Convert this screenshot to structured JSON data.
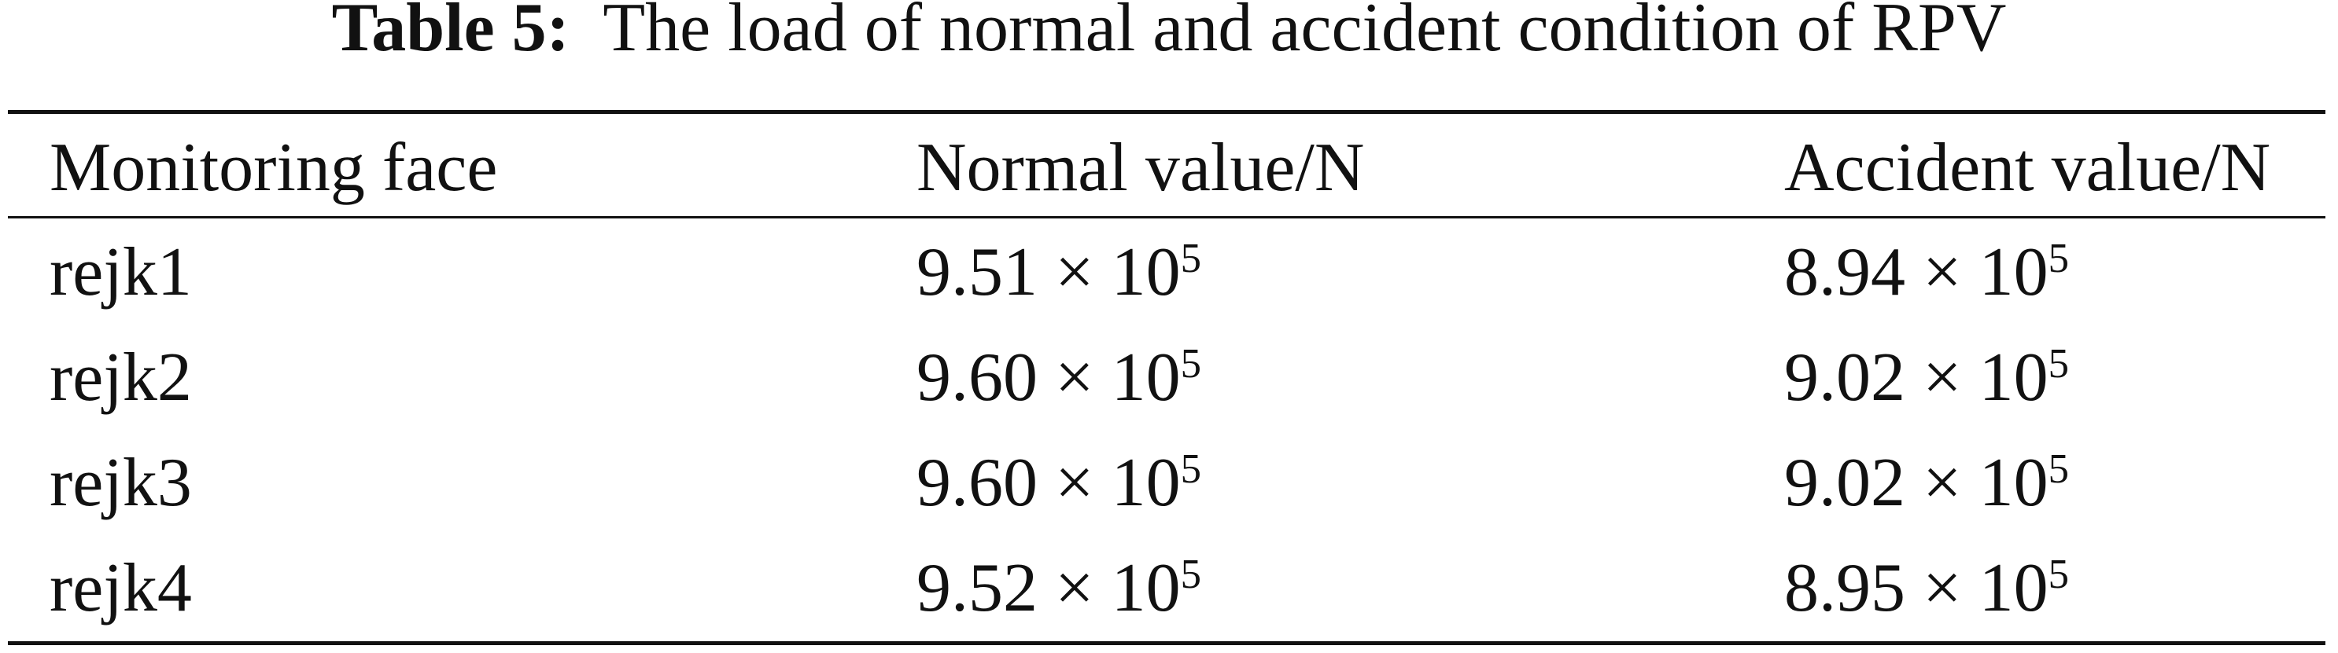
{
  "table": {
    "label": "Table 5:",
    "caption": "The load of normal and accident condition of RPV",
    "header": [
      "Monitoring face",
      "Normal value/N",
      "Accident value/N"
    ],
    "rows": [
      [
        {
          "text": "rejk1"
        },
        {
          "mantissa": "9.51",
          "base": "× 10",
          "exponent": "5"
        },
        {
          "mantissa": "8.94",
          "base": "× 10",
          "exponent": "5"
        }
      ],
      [
        {
          "text": "rejk2"
        },
        {
          "mantissa": "9.60",
          "base": "× 10",
          "exponent": "5"
        },
        {
          "mantissa": "9.02",
          "base": "× 10",
          "exponent": "5"
        }
      ],
      [
        {
          "text": "rejk3"
        },
        {
          "mantissa": "9.60",
          "base": "× 10",
          "exponent": "5"
        },
        {
          "mantissa": "9.02",
          "base": "× 10",
          "exponent": "5"
        }
      ],
      [
        {
          "text": "rejk4"
        },
        {
          "mantissa": "9.52",
          "base": "× 10",
          "exponent": "5"
        },
        {
          "mantissa": "8.95",
          "base": "× 10",
          "exponent": "5"
        }
      ]
    ]
  }
}
